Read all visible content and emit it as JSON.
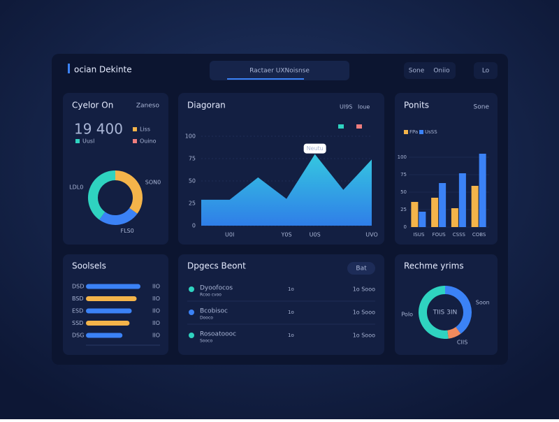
{
  "header": {
    "title": "ocian Dekinte",
    "search": "Ractaer UXNoisnse",
    "buttons": [
      "Sone",
      "Oniio"
    ],
    "user": "Lo"
  },
  "panels": {
    "summary": {
      "title": "Cyelor On",
      "tag": "Zaneso",
      "value": "19 400",
      "legend": [
        {
          "name": "Liss",
          "color": "#f4b44a"
        },
        {
          "name": "Uusl",
          "color": "#2fd3c0"
        },
        {
          "name": "Ouino",
          "color": "#ef7d7d"
        }
      ],
      "donut": {
        "values": [
          35,
          25,
          40
        ],
        "colors": [
          "#f4b44a",
          "#3b82f6",
          "#2fd3c0"
        ],
        "labels": [
          "SON0",
          "FLS0",
          "LDL0"
        ]
      }
    },
    "area": {
      "title": "Diagoran",
      "legend": [
        {
          "name": "UI9S",
          "color": "#2fd3c0"
        },
        {
          "name": "Ioue",
          "color": "#ef7d7d"
        }
      ],
      "ylim": [
        0,
        100
      ],
      "yticks": [
        0,
        25,
        50,
        75,
        100
      ],
      "categories": [
        null,
        "U0I",
        null,
        "Y0S",
        "U0S",
        null,
        "UVO"
      ],
      "values": [
        29,
        29,
        54,
        30,
        80,
        40,
        74
      ],
      "color": "#3aa7e8",
      "callout": "Neutu"
    },
    "bars": {
      "title": "Ponits",
      "tag": "Sone",
      "ylim": [
        0,
        125
      ],
      "yticks": [
        0,
        25,
        50,
        75,
        100
      ],
      "categories": [
        "ISUS",
        "FOUS",
        "CSSS",
        "COBS"
      ],
      "series": [
        {
          "name": "FPa",
          "color": "#f4b44a",
          "values": [
            36,
            42,
            27,
            59
          ]
        },
        {
          "name": "UsSS",
          "color": "#3b82f6",
          "values": [
            22,
            63,
            77,
            105
          ]
        }
      ]
    },
    "progress": {
      "title": "Soolsels",
      "max": 100,
      "rows": [
        {
          "label": "DSD",
          "value": 100,
          "color": "#3b82f6",
          "note": "IIO"
        },
        {
          "label": "BSD",
          "value": 93,
          "color": "#f4b44a",
          "note": "IIO"
        },
        {
          "label": "ESD",
          "value": 84,
          "color": "#3b82f6",
          "note": "IIO"
        },
        {
          "label": "SSD",
          "value": 80,
          "color": "#f4b44a",
          "note": "IIO"
        },
        {
          "label": "DSG",
          "value": 67,
          "color": "#3b82f6",
          "note": "IIO"
        }
      ]
    },
    "list": {
      "title": "Dpgecs Beont",
      "button": "Bat",
      "rows": [
        {
          "name": "Dyoofocos",
          "sub": "Rcoo cvoo",
          "mid": "1o",
          "right": "1o Sooo",
          "color": "#2fd3c0"
        },
        {
          "name": "Bcobisoc",
          "sub": "Dooco",
          "mid": "1o",
          "right": "1o Sooo",
          "color": "#3b82f6"
        },
        {
          "name": "Rosoatoooc",
          "sub": "Sooco",
          "mid": "1o",
          "right": "1o Sooo",
          "color": "#2fd3c0"
        }
      ]
    },
    "ring": {
      "title": "Rechme yrims",
      "center": "TIIS 3IN",
      "values": [
        40,
        8,
        52
      ],
      "colors": [
        "#3b82f6",
        "#f08a5d",
        "#2fd3c0"
      ],
      "labels": [
        "Soon",
        "CIIS",
        "PoIo"
      ]
    }
  }
}
